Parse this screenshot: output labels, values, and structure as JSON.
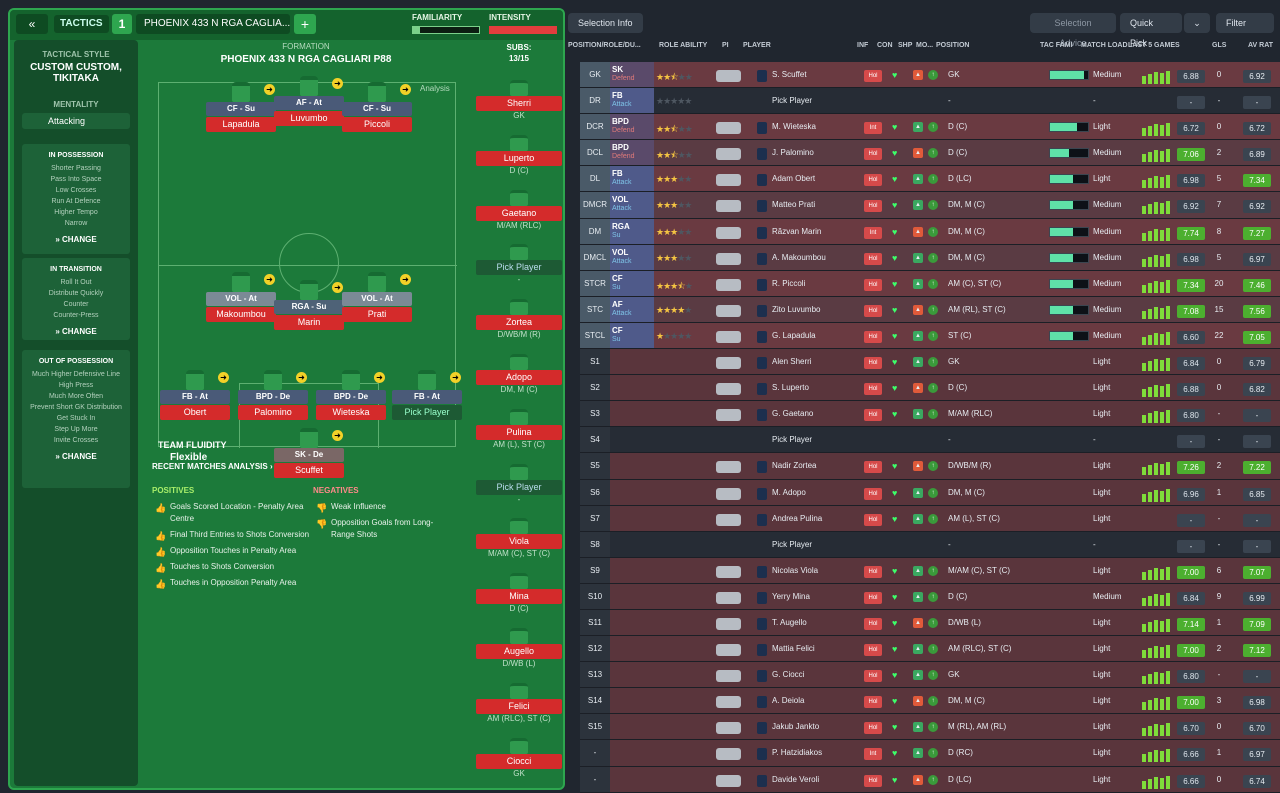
{
  "topbar": {
    "tactics": "TACTICS",
    "tactic_number": "1",
    "tactic_name": "PHOENIX 433 N RGA CAGLIA...",
    "familiarity": "FAMILIARITY",
    "intensity": "INTENSITY"
  },
  "sidebar": {
    "style_label": "TACTICAL STYLE",
    "style_name": "CUSTOM CUSTOM, TIKITAKA",
    "mentality_label": "MENTALITY",
    "mentality_value": "Attacking",
    "possession_title": "IN POSSESSION",
    "possession_items": [
      "Shorter Passing",
      "Pass Into Space",
      "Low Crosses",
      "Run At Defence",
      "Higher Tempo",
      "Narrow"
    ],
    "transition_title": "IN TRANSITION",
    "transition_items": [
      "Roll It Out",
      "Distribute Quickly",
      "Counter",
      "Counter-Press"
    ],
    "oop_title": "OUT OF POSSESSION",
    "oop_items": [
      "Much Higher Defensive Line",
      "High Press",
      "Much More Often",
      "Prevent Short GK Distribution",
      "Get Stuck In",
      "Step Up More",
      "Invite Crosses"
    ],
    "change": "CHANGE"
  },
  "formation": {
    "label": "FORMATION",
    "name": "PHOENIX 433 N RGA CAGLIARI P88",
    "analysis": "Analysis",
    "fluidity_label": "TEAM FLUIDITY",
    "fluidity_value": "Flexible"
  },
  "pitch_players": [
    {
      "role": "CF - Su",
      "name": "Lapadula",
      "cls": ""
    },
    {
      "role": "AF - At",
      "name": "Luvumbo",
      "cls": ""
    },
    {
      "role": "CF - Su",
      "name": "Piccoli",
      "cls": ""
    },
    {
      "role": "VOL - At",
      "name": "Makoumbou",
      "cls": "vol"
    },
    {
      "role": "RGA - Su",
      "name": "Marin",
      "cls": "rga"
    },
    {
      "role": "VOL - At",
      "name": "Prati",
      "cls": "vol"
    },
    {
      "role": "FB - At",
      "name": "Obert",
      "cls": ""
    },
    {
      "role": "BPD - De",
      "name": "Palomino",
      "cls": ""
    },
    {
      "role": "BPD - De",
      "name": "Wieteska",
      "cls": ""
    },
    {
      "role": "FB - At",
      "name": "Pick Player",
      "cls": "empty"
    },
    {
      "role": "SK - De",
      "name": "Scuffet",
      "cls": "sk"
    }
  ],
  "subs": {
    "header": "SUBS:",
    "count": "13/15",
    "list": [
      {
        "name": "Sherri",
        "pos": "GK"
      },
      {
        "name": "Luperto",
        "pos": "D (C)"
      },
      {
        "name": "Gaetano",
        "pos": "M/AM (RLC)"
      },
      {
        "name": "Pick Player",
        "pos": "-"
      },
      {
        "name": "Zortea",
        "pos": "D/WB/M (R)"
      },
      {
        "name": "Adopo",
        "pos": "DM, M (C)"
      },
      {
        "name": "Pulina",
        "pos": "AM (L), ST (C)"
      },
      {
        "name": "Pick Player",
        "pos": "-"
      },
      {
        "name": "Viola",
        "pos": "M/AM (C), ST (C)"
      },
      {
        "name": "Mina",
        "pos": "D (C)"
      },
      {
        "name": "Augello",
        "pos": "D/WB (L)"
      },
      {
        "name": "Felici",
        "pos": "AM (RLC), ST (C)"
      },
      {
        "name": "Ciocci",
        "pos": "GK"
      }
    ]
  },
  "analysis": {
    "title": "RECENT MATCHES ANALYSIS ›",
    "positives_label": "POSITIVES",
    "negatives_label": "NEGATIVES",
    "positives": [
      "Goals Scored Location - Penalty Area Centre",
      "Final Third Entries to Shots Conversion",
      "Opposition Touches in Penalty Area",
      "Touches to Shots Conversion",
      "Touches in Opposition Penalty Area"
    ],
    "negatives": [
      "Weak Influence",
      "Opposition Goals from Long-Range Shots"
    ]
  },
  "right_toolbar": {
    "selection_info": "Selection Info",
    "selection_advice": "Selection Advice",
    "quick_pick": "Quick Pick",
    "filter": "Filter"
  },
  "columns": [
    "POSITION/ROLE/DU...",
    "ROLE ABILITY",
    "PI",
    "PLAYER",
    "INF",
    "CON",
    "SHP",
    "MO...",
    "POSITION",
    "TAC FAMI",
    "MATCH LOAD",
    "LAST 5 GAMES",
    "GLS",
    "AV RAT"
  ],
  "rows": [
    {
      "pos": "GK",
      "role": "SK",
      "duty": "Defend",
      "att": false,
      "stars": 2.5,
      "player": "S. Scuffet",
      "inf": "Hol",
      "position": "GK",
      "tac": 0.9,
      "load": "Medium",
      "avg": "6.88",
      "hi": false,
      "gls": "0",
      "avrat": "6.92",
      "avhi": false
    },
    {
      "pos": "DR",
      "role": "FB",
      "duty": "Attack",
      "att": true,
      "stars": 0,
      "player": "Pick Player",
      "pick": true,
      "position": "-",
      "load": "-",
      "avg": "-",
      "gls": "-",
      "avrat": "-"
    },
    {
      "pos": "DCR",
      "role": "BPD",
      "duty": "Defend",
      "att": false,
      "stars": 2.5,
      "player": "M. Wieteska",
      "inf": "Int",
      "position": "D (C)",
      "tac": 0.7,
      "load": "Light",
      "avg": "6.72",
      "hi": false,
      "gls": "0",
      "avrat": "6.72",
      "avhi": false
    },
    {
      "pos": "DCL",
      "role": "BPD",
      "duty": "Defend",
      "att": false,
      "stars": 2.5,
      "player": "J. Palomino",
      "inf": "Hol",
      "position": "D (C)",
      "tac": 0.5,
      "load": "Medium",
      "avg": "7.06",
      "hi": true,
      "gls": "2",
      "avrat": "6.89",
      "avhi": false
    },
    {
      "pos": "DL",
      "role": "FB",
      "duty": "Attack",
      "att": true,
      "stars": 3,
      "player": "Adam Obert",
      "inf": "Hol",
      "position": "D (LC)",
      "tac": 0.6,
      "load": "Light",
      "avg": "6.98",
      "hi": false,
      "gls": "5",
      "avrat": "7.34",
      "avhi": true
    },
    {
      "pos": "DMCR",
      "role": "VOL",
      "duty": "Attack",
      "att": true,
      "stars": 3,
      "player": "Matteo Prati",
      "inf": "Hol",
      "position": "DM, M (C)",
      "tac": 0.6,
      "load": "Medium",
      "avg": "6.92",
      "hi": false,
      "gls": "7",
      "avrat": "6.92",
      "avhi": false
    },
    {
      "pos": "DM",
      "role": "RGA",
      "duty": "Su",
      "att": true,
      "stars": 3,
      "player": "Răzvan Marin",
      "inf": "Int",
      "position": "DM, M (C)",
      "tac": 0.6,
      "load": "Medium",
      "avg": "7.74",
      "hi": true,
      "gls": "8",
      "avrat": "7.27",
      "avhi": true
    },
    {
      "pos": "DMCL",
      "role": "VOL",
      "duty": "Attack",
      "att": true,
      "stars": 3,
      "player": "A. Makoumbou",
      "inf": "Hol",
      "position": "DM, M (C)",
      "tac": 0.6,
      "load": "Medium",
      "avg": "6.98",
      "hi": false,
      "gls": "5",
      "avrat": "6.97",
      "avhi": false
    },
    {
      "pos": "STCR",
      "role": "CF",
      "duty": "Su",
      "att": true,
      "stars": 3.5,
      "player": "R. Piccoli",
      "inf": "Hol",
      "position": "AM (C), ST (C)",
      "tac": 0.6,
      "load": "Medium",
      "avg": "7.34",
      "hi": true,
      "gls": "20",
      "avrat": "7.46",
      "avhi": true
    },
    {
      "pos": "STC",
      "role": "AF",
      "duty": "Attack",
      "att": true,
      "stars": 4,
      "player": "Zito Luvumbo",
      "inf": "Hol",
      "position": "AM (RL), ST (C)",
      "tac": 0.6,
      "load": "Medium",
      "avg": "7.08",
      "hi": true,
      "gls": "15",
      "avrat": "7.56",
      "avhi": true
    },
    {
      "pos": "STCL",
      "role": "CF",
      "duty": "Su",
      "att": true,
      "stars": 1,
      "player": "G. Lapadula",
      "inf": "Hol",
      "position": "ST (C)",
      "tac": 0.6,
      "load": "Medium",
      "avg": "6.60",
      "hi": false,
      "gls": "22",
      "avrat": "7.05",
      "avhi": true
    },
    {
      "pos": "S1",
      "player": "Alen Sherri",
      "inf": "Hol",
      "position": "GK",
      "load": "Light",
      "avg": "6.84",
      "gls": "0",
      "avrat": "6.79"
    },
    {
      "pos": "S2",
      "player": "S. Luperto",
      "inf": "Hol",
      "position": "D (C)",
      "load": "Light",
      "avg": "6.88",
      "gls": "0",
      "avrat": "6.82"
    },
    {
      "pos": "S3",
      "player": "G. Gaetano",
      "inf": "Hol",
      "position": "M/AM (RLC)",
      "load": "Light",
      "avg": "6.80",
      "gls": "-",
      "avrat": "-"
    },
    {
      "pos": "S4",
      "player": "Pick Player",
      "pick": true,
      "position": "-",
      "load": "-",
      "avg": "-",
      "gls": "-",
      "avrat": "-"
    },
    {
      "pos": "S5",
      "player": "Nadir Zortea",
      "inf": "Hol",
      "position": "D/WB/M (R)",
      "load": "Light",
      "avg": "7.26",
      "hi": true,
      "gls": "2",
      "avrat": "7.22",
      "avhi": true
    },
    {
      "pos": "S6",
      "player": "M. Adopo",
      "inf": "Hol",
      "position": "DM, M (C)",
      "load": "Light",
      "avg": "6.96",
      "gls": "1",
      "avrat": "6.85"
    },
    {
      "pos": "S7",
      "player": "Andrea Pulina",
      "inf": "Hol",
      "position": "AM (L), ST (C)",
      "load": "Light",
      "avg": "-",
      "gls": "-",
      "avrat": "-"
    },
    {
      "pos": "S8",
      "player": "Pick Player",
      "pick": true,
      "position": "-",
      "load": "-",
      "avg": "-",
      "gls": "-",
      "avrat": "-"
    },
    {
      "pos": "S9",
      "player": "Nicolas Viola",
      "inf": "Hol",
      "position": "M/AM (C), ST (C)",
      "load": "Light",
      "avg": "7.00",
      "hi": true,
      "gls": "6",
      "avrat": "7.07",
      "avhi": true
    },
    {
      "pos": "S10",
      "player": "Yerry Mina",
      "inf": "Hol",
      "position": "D (C)",
      "load": "Medium",
      "avg": "6.84",
      "gls": "9",
      "avrat": "6.99"
    },
    {
      "pos": "S11",
      "player": "T. Augello",
      "inf": "Hol",
      "position": "D/WB (L)",
      "load": "Light",
      "avg": "7.14",
      "hi": true,
      "gls": "1",
      "avrat": "7.09",
      "avhi": true
    },
    {
      "pos": "S12",
      "player": "Mattia Felici",
      "inf": "Hol",
      "position": "AM (RLC), ST (C)",
      "load": "Light",
      "avg": "7.00",
      "hi": true,
      "gls": "2",
      "avrat": "7.12",
      "avhi": true
    },
    {
      "pos": "S13",
      "player": "G. Ciocci",
      "inf": "Hol",
      "position": "GK",
      "load": "Light",
      "avg": "6.80",
      "gls": "-",
      "avrat": "-"
    },
    {
      "pos": "S14",
      "player": "A. Deiola",
      "inf": "Hol",
      "position": "DM, M (C)",
      "load": "Light",
      "avg": "7.00",
      "hi": true,
      "gls": "3",
      "avrat": "6.98"
    },
    {
      "pos": "S15",
      "player": "Jakub Jankto",
      "inf": "Hol",
      "position": "M (RL), AM (RL)",
      "load": "Light",
      "avg": "6.70",
      "gls": "0",
      "avrat": "6.70"
    },
    {
      "pos": "-",
      "player": "P. Hatzidiakos",
      "inf": "Int",
      "position": "D (RC)",
      "load": "Light",
      "avg": "6.66",
      "gls": "1",
      "avrat": "6.97"
    },
    {
      "pos": "-",
      "player": "Davide Veroli",
      "inf": "Hol",
      "position": "D (LC)",
      "load": "Light",
      "avg": "6.66",
      "gls": "0",
      "avrat": "6.74"
    }
  ]
}
